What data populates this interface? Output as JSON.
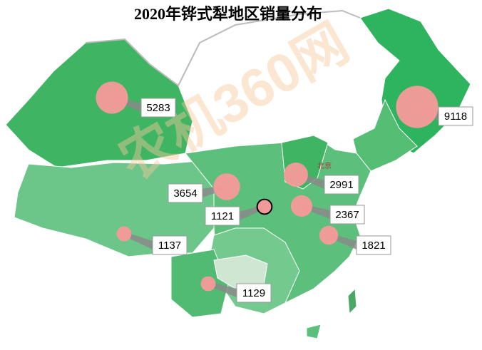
{
  "title": "2020年铧式犁地区销量分布",
  "watermark": "农机360网",
  "city_label": "北京",
  "callouts": [
    {
      "value": 5283
    },
    {
      "value": 9118
    },
    {
      "value": 3654
    },
    {
      "value": 1121
    },
    {
      "value": 2991
    },
    {
      "value": 2367
    },
    {
      "value": 1821
    },
    {
      "value": 1137
    },
    {
      "value": 1129
    }
  ]
}
